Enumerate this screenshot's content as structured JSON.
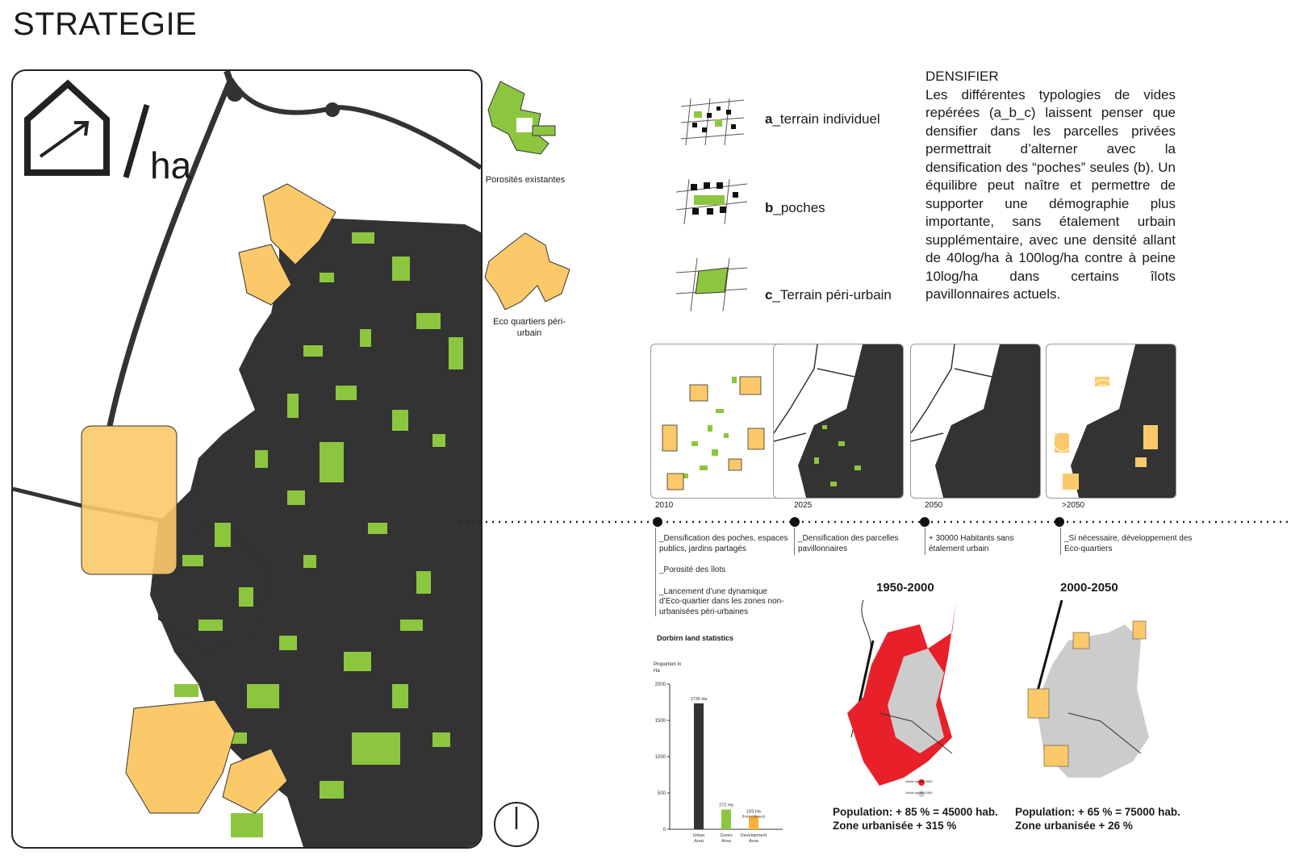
{
  "title": "STRATEGIE",
  "main_map": {
    "unit_label": "ha"
  },
  "side_legend": [
    {
      "label": "Porosités existantes"
    },
    {
      "label": "Eco quartiers péri-urbain"
    }
  ],
  "typologies": [
    {
      "letter": "a",
      "label": "_terrain individuel"
    },
    {
      "letter": "b",
      "label": "_poches"
    },
    {
      "letter": "c",
      "label": "_Terrain péri-urbain"
    }
  ],
  "densifier": {
    "heading": "DENSIFIER",
    "text": "Les différentes typologies de vides repérées (a_b_c) laissent penser que densifier dans les parcelles privées permettrait d’alterner avec la densification des “poches” seules (b). Un équilibre peut naître et permettre de supporter une démographie plus importante, sans étalement urbain supplémentaire, avec une densité allant de 40log/ha à 100log/ha contre à peine 10log/ha dans certains îlots pavillonnaires actuels."
  },
  "timeline": [
    {
      "year": "2010",
      "notes": [
        "_Densification des poches, espaces publics, jardins partagés",
        "_Porosité des îlots",
        "_Lancement d’une dynamique d’Eco-quartier dans les zones non-urbanisées péri-urbaines"
      ]
    },
    {
      "year": "2025",
      "notes": [
        "_Densification des parcelles pavillonnaires"
      ]
    },
    {
      "year": "2050",
      "notes": [
        "+ 30000 Habitants sans étalement urbain"
      ]
    },
    {
      "year": ">2050",
      "notes": [
        "_Si nécessaire, développement des Eco-quartiers"
      ]
    }
  ],
  "chart_data": {
    "type": "bar",
    "title": "Dorbirn land statistics",
    "ylabel": "Proportion in Ha",
    "ylim": [
      0,
      2000
    ],
    "yticks": [
      0,
      500,
      1000,
      1500,
      2000
    ],
    "categories": [
      "Urban Area",
      "Green Area",
      "Development Area"
    ],
    "values": [
      1735,
      272,
      183
    ],
    "data_labels": [
      "1735 Ha",
      "272 Ha",
      "183 Ha"
    ],
    "data_label_notes": [
      "",
      "",
      "(hors côteaux)"
    ],
    "colors": [
      "#333333",
      "#8cc63f",
      "#fbb03b"
    ]
  },
  "growth_maps": [
    {
      "title": "1950-2000",
      "population": "Population: + 85 % = 45000 hab.",
      "zone": "Zone urbanisée + 315 %",
      "legend": [
        "Urban sprawl 2000",
        "Urban sprawl 1950"
      ]
    },
    {
      "title": "2000-2050",
      "population": "Population: + 65 % = 75000 hab.",
      "zone": "Zone urbanisée + 26 %"
    }
  ],
  "colors": {
    "urban": "#333333",
    "green": "#8cc63f",
    "eco": "#fbc96a",
    "sprawl": "#e8202a",
    "grey": "#cccccc"
  }
}
